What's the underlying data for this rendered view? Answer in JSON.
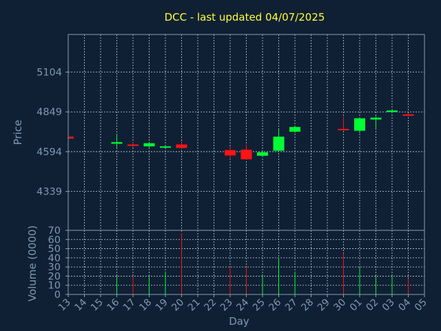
{
  "chart_data": {
    "type": "candlestick",
    "title": "DCC - last updated 04/07/2025",
    "xlabel": "Day",
    "days": [
      "13",
      "14",
      "15",
      "16",
      "17",
      "18",
      "19",
      "20",
      "21",
      "22",
      "23",
      "24",
      "25",
      "26",
      "27",
      "28",
      "29",
      "30",
      "01",
      "02",
      "03",
      "04",
      "05"
    ],
    "price_panel": {
      "ylabel": "Price",
      "yticks": [
        4339,
        4594,
        4849,
        5104
      ],
      "ylim": [
        4090,
        5345
      ],
      "grid": true
    },
    "volume_panel": {
      "ylabel": "Volume (0000)",
      "yticks": [
        0,
        10,
        20,
        30,
        40,
        50,
        60,
        70
      ],
      "ylim": [
        0,
        70
      ],
      "grid": true
    },
    "colors": {
      "up": "#00ff33",
      "down": "#ff1414"
    },
    "candles": [
      {
        "day": "13",
        "open": 4690,
        "close": 4678,
        "high": 4692,
        "low": 4675,
        "volume": 0
      },
      {
        "day": "16",
        "open": 4645,
        "close": 4655,
        "high": 4710,
        "low": 4622,
        "volume": 20
      },
      {
        "day": "17",
        "open": 4640,
        "close": 4632,
        "high": 4660,
        "low": 4620,
        "volume": 20
      },
      {
        "day": "18",
        "open": 4628,
        "close": 4648,
        "high": 4656,
        "low": 4622,
        "volume": 20
      },
      {
        "day": "19",
        "open": 4620,
        "close": 4628,
        "high": 4632,
        "low": 4616,
        "volume": 25
      },
      {
        "day": "20",
        "open": 4640,
        "close": 4618,
        "high": 4665,
        "low": 4613,
        "volume": 67
      },
      {
        "day": "23",
        "open": 4604,
        "close": 4570,
        "high": 4627,
        "low": 4545,
        "volume": 30
      },
      {
        "day": "24",
        "open": 4607,
        "close": 4545,
        "high": 4640,
        "low": 4540,
        "volume": 30
      },
      {
        "day": "25",
        "open": 4568,
        "close": 4590,
        "high": 4595,
        "low": 4560,
        "volume": 20
      },
      {
        "day": "26",
        "open": 4600,
        "close": 4690,
        "high": 4735,
        "low": 4597,
        "volume": 40
      },
      {
        "day": "27",
        "open": 4722,
        "close": 4752,
        "high": 4757,
        "low": 4714,
        "volume": 25
      },
      {
        "day": "30",
        "open": 4740,
        "close": 4735,
        "high": 4818,
        "low": 4730,
        "volume": 45
      },
      {
        "day": "01",
        "open": 4728,
        "close": 4808,
        "high": 4810,
        "low": 4713,
        "volume": 30
      },
      {
        "day": "02",
        "open": 4800,
        "close": 4812,
        "high": 4820,
        "low": 4745,
        "volume": 20
      },
      {
        "day": "03",
        "open": 4848,
        "close": 4858,
        "high": 4864,
        "low": 4843,
        "volume": 20
      },
      {
        "day": "04",
        "open": 4833,
        "close": 4826,
        "high": 4842,
        "low": 4820,
        "volume": 17
      }
    ]
  }
}
